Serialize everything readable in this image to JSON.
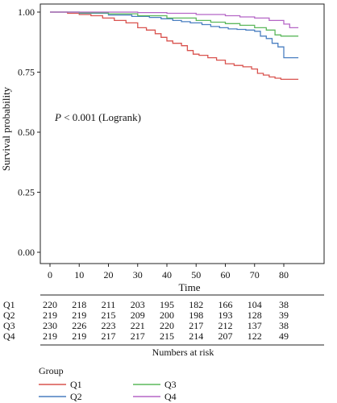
{
  "chart_data": {
    "type": "line",
    "subtype": "kaplan-meier",
    "title": "",
    "xlabel": "Time",
    "ylabel": "Survival probability",
    "xlim": [
      -2,
      86
    ],
    "ylim": [
      0,
      1.0
    ],
    "x_ticks": [
      0,
      10,
      20,
      30,
      40,
      50,
      60,
      70,
      80
    ],
    "x_tick_labels": [
      "0",
      "10",
      "20",
      "30",
      "40",
      "50",
      "60",
      "70",
      "80"
    ],
    "y_ticks": [
      0.0,
      0.25,
      0.5,
      0.75,
      1.0
    ],
    "y_tick_labels": [
      "0.00",
      "0.25",
      "0.50",
      "0.75",
      "1.00"
    ],
    "grid": false,
    "annotation": {
      "p_symbol": "P",
      "rest": " < 0.001 (Logrank)"
    },
    "series": [
      {
        "name": "Q1",
        "color": "#d9534f",
        "points": [
          [
            0,
            1.0
          ],
          [
            6,
            0.995
          ],
          [
            10,
            0.99
          ],
          [
            14,
            0.985
          ],
          [
            18,
            0.975
          ],
          [
            22,
            0.965
          ],
          [
            26,
            0.955
          ],
          [
            30,
            0.935
          ],
          [
            33,
            0.925
          ],
          [
            36,
            0.91
          ],
          [
            38,
            0.895
          ],
          [
            40,
            0.88
          ],
          [
            42,
            0.87
          ],
          [
            45,
            0.86
          ],
          [
            47,
            0.84
          ],
          [
            49,
            0.825
          ],
          [
            51,
            0.82
          ],
          [
            54,
            0.81
          ],
          [
            57,
            0.8
          ],
          [
            60,
            0.785
          ],
          [
            63,
            0.778
          ],
          [
            66,
            0.772
          ],
          [
            69,
            0.763
          ],
          [
            71,
            0.745
          ],
          [
            73,
            0.738
          ],
          [
            75,
            0.73
          ],
          [
            77,
            0.725
          ],
          [
            79,
            0.72
          ],
          [
            85,
            0.72
          ]
        ]
      },
      {
        "name": "Q2",
        "color": "#4a7fc1",
        "points": [
          [
            0,
            1.0
          ],
          [
            10,
            0.995
          ],
          [
            20,
            0.988
          ],
          [
            28,
            0.982
          ],
          [
            34,
            0.978
          ],
          [
            38,
            0.972
          ],
          [
            42,
            0.965
          ],
          [
            45,
            0.96
          ],
          [
            48,
            0.955
          ],
          [
            52,
            0.948
          ],
          [
            55,
            0.94
          ],
          [
            58,
            0.935
          ],
          [
            61,
            0.93
          ],
          [
            64,
            0.928
          ],
          [
            67,
            0.925
          ],
          [
            70,
            0.92
          ],
          [
            72,
            0.9
          ],
          [
            74,
            0.89
          ],
          [
            76,
            0.87
          ],
          [
            78,
            0.855
          ],
          [
            80,
            0.81
          ],
          [
            85,
            0.81
          ]
        ]
      },
      {
        "name": "Q3",
        "color": "#5cb85c",
        "points": [
          [
            0,
            1.0
          ],
          [
            10,
            0.997
          ],
          [
            20,
            0.993
          ],
          [
            30,
            0.985
          ],
          [
            40,
            0.975
          ],
          [
            50,
            0.965
          ],
          [
            55,
            0.958
          ],
          [
            60,
            0.952
          ],
          [
            65,
            0.945
          ],
          [
            70,
            0.935
          ],
          [
            74,
            0.925
          ],
          [
            77,
            0.905
          ],
          [
            79,
            0.9
          ],
          [
            85,
            0.9
          ]
        ]
      },
      {
        "name": "Q4",
        "color": "#b566c6",
        "points": [
          [
            0,
            1.0
          ],
          [
            20,
            1.0
          ],
          [
            30,
            0.998
          ],
          [
            40,
            0.995
          ],
          [
            50,
            0.99
          ],
          [
            60,
            0.985
          ],
          [
            65,
            0.98
          ],
          [
            70,
            0.975
          ],
          [
            75,
            0.965
          ],
          [
            80,
            0.95
          ],
          [
            82,
            0.935
          ],
          [
            85,
            0.935
          ]
        ]
      }
    ],
    "risk_table": {
      "title": "Numbers at risk",
      "times": [
        0,
        10,
        20,
        30,
        40,
        50,
        60,
        70,
        80
      ],
      "rows": [
        {
          "label": "Q1",
          "values": [
            "220",
            "218",
            "211",
            "203",
            "195",
            "182",
            "166",
            "104",
            "38"
          ]
        },
        {
          "label": "Q2",
          "values": [
            "219",
            "219",
            "215",
            "209",
            "200",
            "198",
            "193",
            "128",
            "39"
          ]
        },
        {
          "label": "Q3",
          "values": [
            "230",
            "226",
            "223",
            "221",
            "220",
            "217",
            "212",
            "137",
            "38"
          ]
        },
        {
          "label": "Q4",
          "values": [
            "219",
            "219",
            "217",
            "217",
            "215",
            "214",
            "207",
            "122",
            "49"
          ]
        }
      ]
    },
    "legend": {
      "title": "Group",
      "placement": "bottom"
    }
  }
}
